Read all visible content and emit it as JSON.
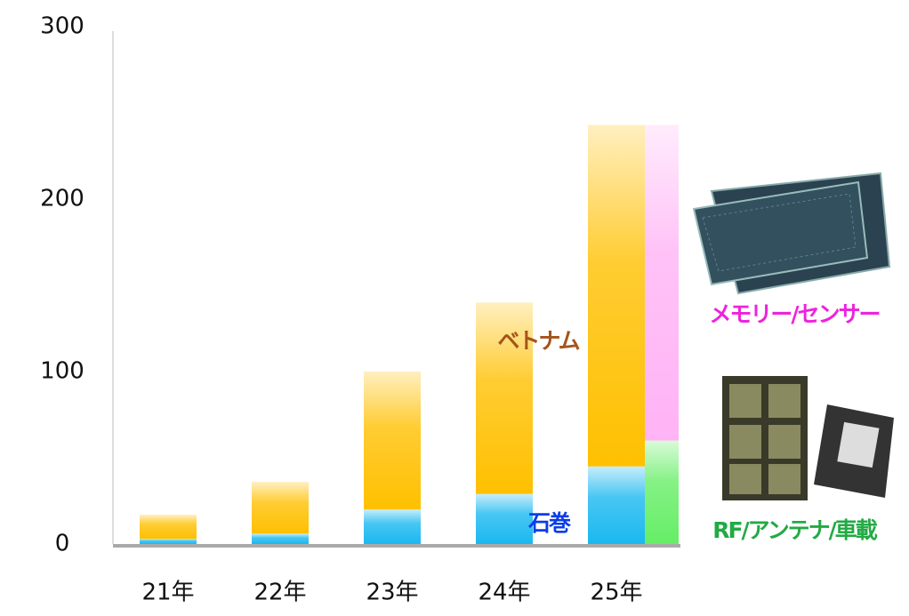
{
  "chart_data": {
    "type": "stacked_bar",
    "categories": [
      "21年",
      "22年",
      "23年",
      "24年",
      "25年"
    ],
    "series": [
      {
        "name": "石巻",
        "color": "#1ab8f0",
        "stack": "main",
        "values": [
          3,
          6,
          20,
          29,
          45
        ]
      },
      {
        "name": "ベトナム",
        "color": "#ffc000",
        "stack": "main",
        "values": [
          14,
          30,
          80,
          111,
          198
        ]
      },
      {
        "name": "RF/アンテナ/車載",
        "color": "#66ee66",
        "stack": "side",
        "values": [
          null,
          null,
          null,
          null,
          60
        ]
      },
      {
        "name": "メモリー/センサー",
        "color": "#ffb3f5",
        "stack": "side",
        "values": [
          null,
          null,
          null,
          null,
          183
        ]
      }
    ],
    "ylim": [
      0,
      300
    ],
    "yticks": [
      0,
      100,
      200,
      300
    ],
    "grid": false
  }
}
